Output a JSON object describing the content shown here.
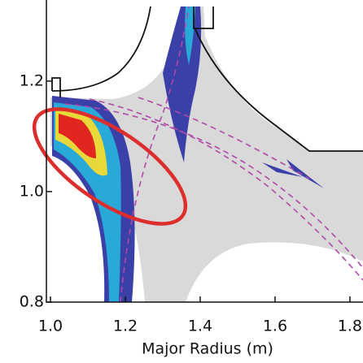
{
  "chart_data": {
    "type": "contour",
    "xlabel": "Major Radius (m)",
    "xlim": [
      1.0,
      1.835
    ],
    "ylim": [
      0.8,
      1.335
    ],
    "xticks": [
      {
        "value": 1,
        "label": "1.0"
      },
      1.2,
      1.4,
      1.6,
      1.8
    ],
    "yticks": [
      0.8,
      {
        "value": 1,
        "label": "1.0"
      },
      1.2
    ]
  }
}
